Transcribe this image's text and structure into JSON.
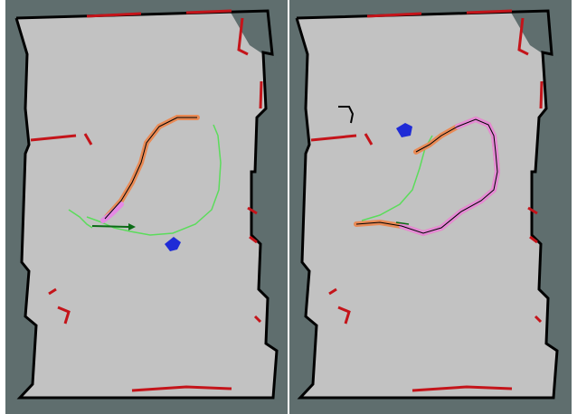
{
  "figure": {
    "panels": [
      {
        "id": "left",
        "description_name": "map-panel-left"
      },
      {
        "id": "right",
        "description_name": "map-panel-right"
      }
    ]
  },
  "colors": {
    "unknown_space": "#5f6e6e",
    "free_space": "#c2c2c2",
    "walls": "#000000",
    "walls_highlight": "#c4141a",
    "path_green": "#5bdc5b",
    "trajectory_pink": "#e48ae4",
    "trajectory_orange": "#e98a55",
    "robot_arrow": "#0b6b16",
    "particles_blue": "#1f2bd6",
    "white_frame": "#ffffff"
  }
}
